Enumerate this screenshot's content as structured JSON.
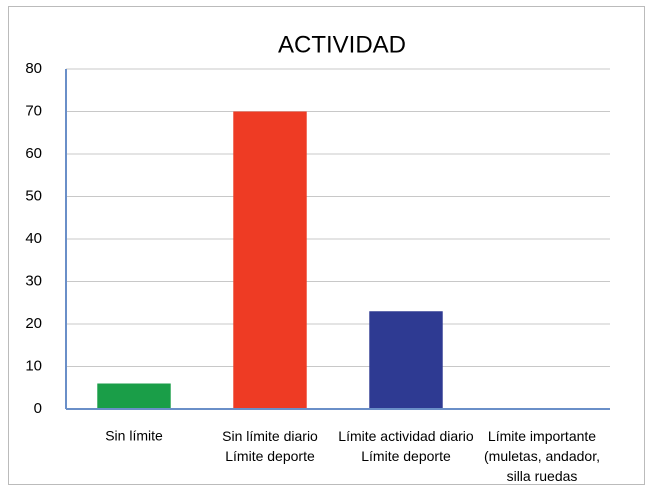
{
  "chart_data": {
    "type": "bar",
    "title": "ACTIVIDAD",
    "categories": [
      "Sin límite",
      "Sin límite diario\nLímite deporte",
      "Límite actividad diario\nLímite deporte",
      "Límite importante\n(muletas, andador,\nsilla ruedas"
    ],
    "values": [
      6,
      70,
      23,
      0
    ],
    "colors": [
      "#1a9e48",
      "#ee3b24",
      "#2e3a92",
      "#888888"
    ],
    "ylim": [
      0,
      80
    ],
    "yticks": [
      0,
      10,
      20,
      30,
      40,
      50,
      60,
      70,
      80
    ],
    "grid": true
  }
}
